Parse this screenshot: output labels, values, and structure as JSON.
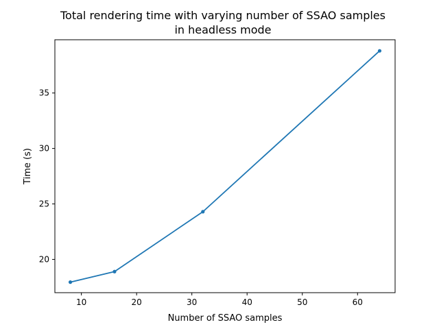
{
  "chart_data": {
    "type": "line",
    "title": "Total rendering time with varying number of SSAO samples",
    "subtitle": "in headless mode",
    "xlabel": "Number of SSAO samples",
    "ylabel": "Time (s)",
    "x": [
      8,
      16,
      32,
      64
    ],
    "series": [
      {
        "values": [
          17.95,
          18.9,
          24.3,
          38.8
        ],
        "color": "#1f77b4",
        "marker": "circle"
      }
    ],
    "xlim": [
      5.2,
      66.8
    ],
    "ylim": [
      17.0,
      39.8
    ],
    "xticks": [
      10,
      20,
      30,
      40,
      50,
      60
    ],
    "yticks": [
      20,
      25,
      30,
      35
    ],
    "xtick_labels": [
      "10",
      "20",
      "30",
      "40",
      "50",
      "60"
    ],
    "ytick_labels": [
      "20",
      "25",
      "30",
      "35"
    ],
    "grid": false,
    "legend": "none"
  }
}
